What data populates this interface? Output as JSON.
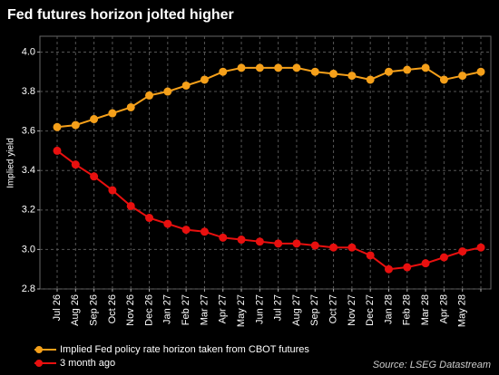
{
  "chart_data": {
    "type": "line",
    "title": "Fed futures horizon jolted higher",
    "y_label": "Implied yield",
    "source": "Source: LSEG Datastream",
    "categories": [
      "Jul 26",
      "Aug 26",
      "Sep 26",
      "Oct 26",
      "Nov 26",
      "Dec 26",
      "Jan 27",
      "Feb 27",
      "Mar 27",
      "Apr 27",
      "May 27",
      "Jun 27",
      "Jul 27",
      "Aug 27",
      "Sep 27",
      "Oct 27",
      "Nov 27",
      "Dec 27",
      "Jan 28",
      "Feb 28",
      "Mar 28",
      "Apr 28",
      "May 28",
      null
    ],
    "series": [
      {
        "name": "Implied Fed policy rate horizon taken from CBOT futures",
        "color": "#f5a01a",
        "values": [
          3.62,
          3.63,
          3.66,
          3.69,
          3.72,
          3.78,
          3.8,
          3.83,
          3.86,
          3.9,
          3.92,
          3.92,
          3.92,
          3.92,
          3.9,
          3.89,
          3.88,
          3.86,
          3.9,
          3.91,
          3.92,
          3.86,
          3.88,
          3.9
        ]
      },
      {
        "name": "3 month ago",
        "color": "#e8100f",
        "values": [
          3.5,
          3.43,
          3.37,
          3.3,
          3.22,
          3.16,
          3.13,
          3.1,
          3.09,
          3.06,
          3.05,
          3.04,
          3.03,
          3.03,
          3.02,
          3.01,
          3.01,
          2.97,
          2.9,
          2.91,
          2.93,
          2.96,
          2.99,
          3.01
        ]
      }
    ],
    "ylim": [
      2.8,
      4.08
    ],
    "yticks": [
      2.8,
      {
        "value": 3.0,
        "label": "3.0"
      },
      3.2,
      3.4,
      3.6,
      3.8,
      {
        "value": 4.0,
        "label": "4.0"
      }
    ],
    "grid": true
  }
}
